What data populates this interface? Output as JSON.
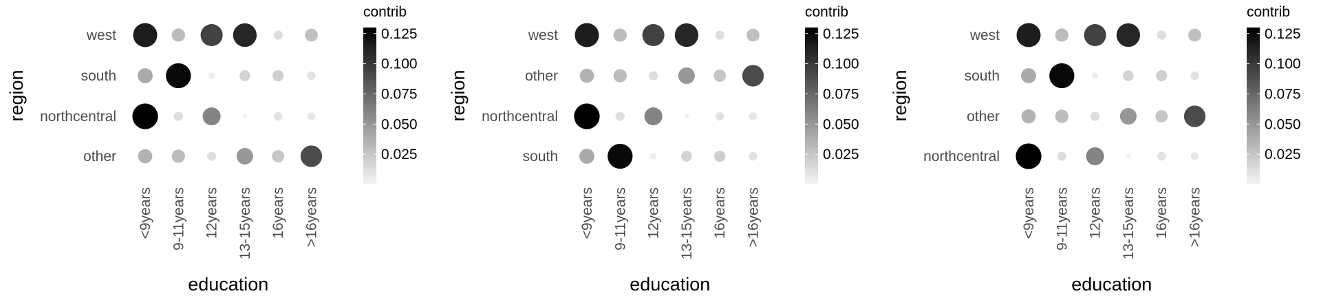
{
  "chart_data": [
    {
      "type": "scatter",
      "xlabel": "education",
      "ylabel": "region",
      "x_categories": [
        "<9years",
        "9-11years",
        "12years",
        "13-15years",
        "16years",
        ">16years"
      ],
      "y_categories": [
        "west",
        "south",
        "northcentral",
        "other"
      ],
      "values": [
        [
          0.115,
          0.03,
          0.095,
          0.11,
          0.012,
          0.028
        ],
        [
          0.04,
          0.125,
          0.004,
          0.018,
          0.02,
          0.01
        ],
        [
          0.132,
          0.012,
          0.06,
          0.002,
          0.01,
          0.008
        ],
        [
          0.035,
          0.03,
          0.012,
          0.05,
          0.025,
          0.09
        ]
      ],
      "legend": {
        "title": "contrib",
        "ticks": [
          0.125,
          0.1,
          0.075,
          0.05,
          0.025
        ],
        "tick_labels": [
          "0.125",
          "0.100",
          "0.075",
          "0.050",
          "0.025"
        ],
        "range": [
          0,
          0.13
        ],
        "position": "right"
      },
      "grid": false
    },
    {
      "type": "scatter",
      "xlabel": "education",
      "ylabel": "region",
      "x_categories": [
        "<9years",
        "9-11years",
        "12years",
        "13-15years",
        "16years",
        ">16years"
      ],
      "y_categories": [
        "west",
        "other",
        "northcentral",
        "south"
      ],
      "values": [
        [
          0.115,
          0.03,
          0.095,
          0.11,
          0.012,
          0.028
        ],
        [
          0.035,
          0.03,
          0.012,
          0.05,
          0.025,
          0.09
        ],
        [
          0.132,
          0.012,
          0.06,
          0.002,
          0.01,
          0.008
        ],
        [
          0.04,
          0.125,
          0.004,
          0.018,
          0.02,
          0.01
        ]
      ],
      "legend": {
        "title": "contrib",
        "ticks": [
          0.125,
          0.1,
          0.075,
          0.05,
          0.025
        ],
        "tick_labels": [
          "0.125",
          "0.100",
          "0.075",
          "0.050",
          "0.025"
        ],
        "range": [
          0,
          0.13
        ],
        "position": "right"
      },
      "grid": false
    },
    {
      "type": "scatter",
      "xlabel": "education",
      "ylabel": "region",
      "x_categories": [
        "<9years",
        "9-11years",
        "12years",
        "13-15years",
        "16years",
        ">16years"
      ],
      "y_categories": [
        "west",
        "south",
        "other",
        "northcentral"
      ],
      "values": [
        [
          0.115,
          0.03,
          0.095,
          0.11,
          0.012,
          0.028
        ],
        [
          0.04,
          0.125,
          0.004,
          0.018,
          0.02,
          0.01
        ],
        [
          0.035,
          0.03,
          0.012,
          0.05,
          0.025,
          0.09
        ],
        [
          0.132,
          0.012,
          0.06,
          0.002,
          0.01,
          0.008
        ]
      ],
      "legend": {
        "title": "contrib",
        "ticks": [
          0.125,
          0.1,
          0.075,
          0.05,
          0.025
        ],
        "tick_labels": [
          "0.125",
          "0.100",
          "0.075",
          "0.050",
          "0.025"
        ],
        "range": [
          0,
          0.13
        ],
        "position": "right"
      },
      "grid": false
    }
  ]
}
